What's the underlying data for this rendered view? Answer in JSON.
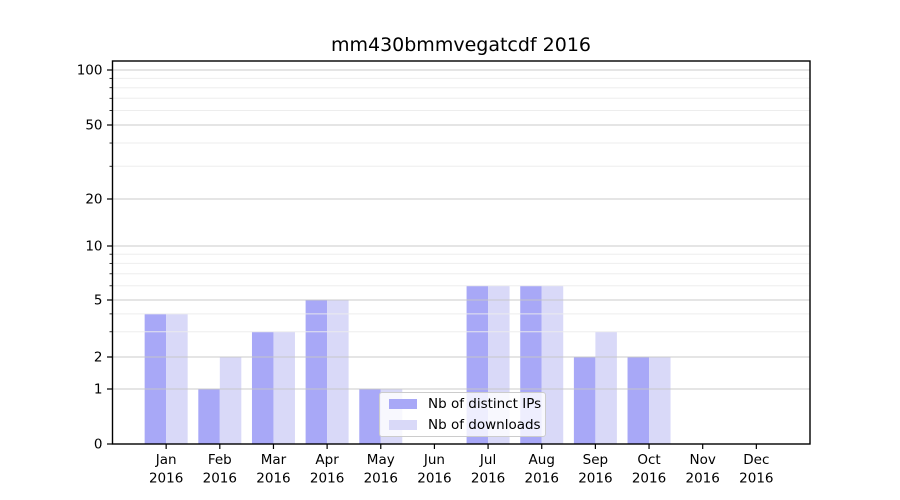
{
  "chart_data": {
    "type": "bar",
    "title": "mm430bmmvegatcdf 2016",
    "x_axis": {
      "months": [
        "Jan",
        "Feb",
        "Mar",
        "Apr",
        "May",
        "Jun",
        "Jul",
        "Aug",
        "Sep",
        "Oct",
        "Nov",
        "Dec"
      ],
      "year_label": "2016"
    },
    "y_axis": {
      "scale": "symlog",
      "major_ticks": [
        0,
        1,
        2,
        5,
        10,
        20,
        50,
        100
      ],
      "minor_gridline_values": [
        3,
        4,
        6,
        7,
        8,
        9,
        30,
        40,
        60,
        70,
        80,
        90
      ],
      "ylim": [
        0,
        100
      ]
    },
    "series": [
      {
        "name": "Nb of distinct IPs",
        "color": "#a8a8f7",
        "values": [
          4,
          1,
          3,
          5,
          1,
          0,
          6,
          6,
          2,
          2,
          0,
          0
        ]
      },
      {
        "name": "Nb of downloads",
        "color": "#d9d9f8",
        "values": [
          4,
          2,
          3,
          5,
          1,
          0,
          6,
          6,
          3,
          2,
          0,
          0
        ]
      }
    ],
    "legend": {
      "position": "lower center",
      "entries": [
        "Nb of distinct IPs",
        "Nb of downloads"
      ]
    },
    "grid": {
      "major_color": "#c6c6c6",
      "minor_color": "#ececec"
    },
    "colors": {
      "axis": "#000000",
      "background": "#ffffff"
    }
  }
}
